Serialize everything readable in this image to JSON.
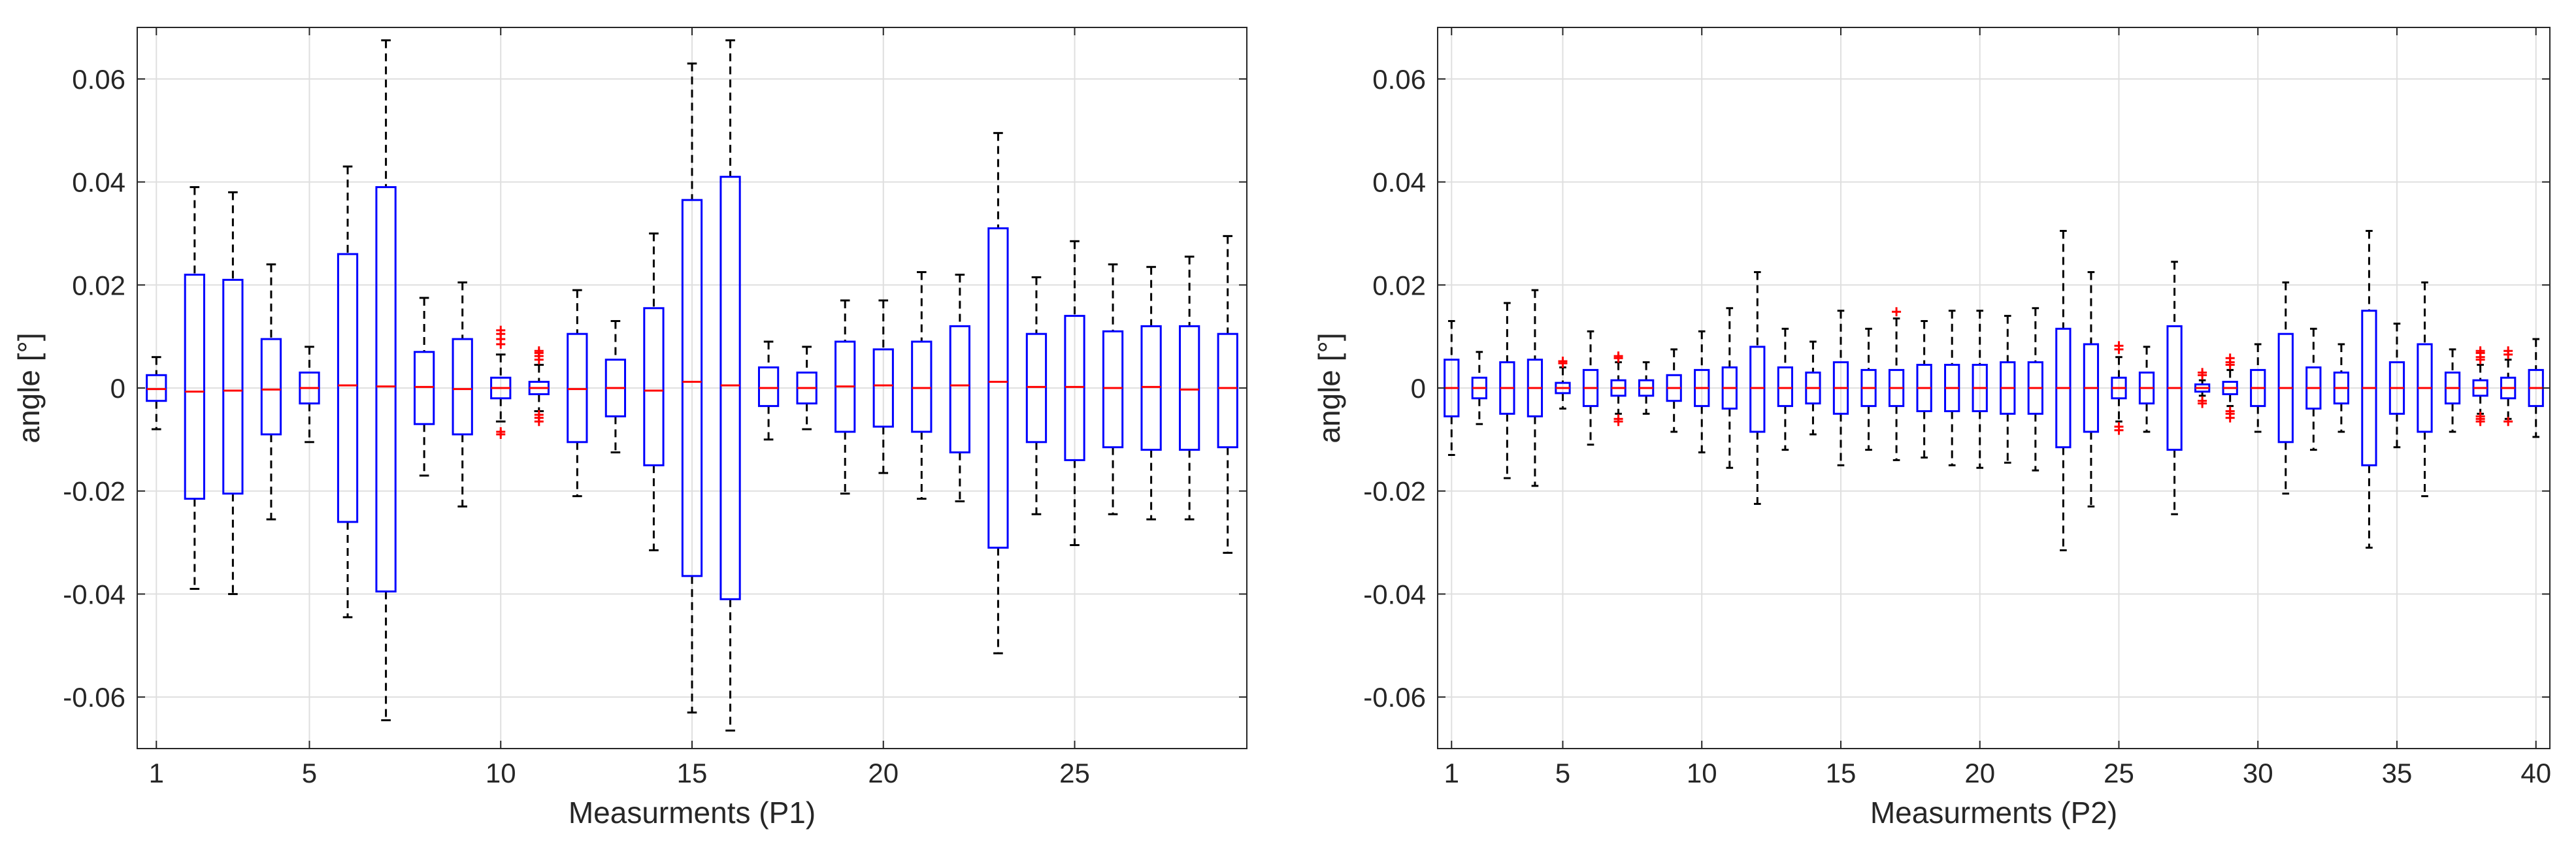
{
  "colors": {
    "box": "#0000ff",
    "median": "#ff0000",
    "outlier": "#ff0000",
    "whisker": "#000000",
    "grid": "#dfdfdf",
    "axis": "#262626"
  },
  "chart_data": [
    {
      "type": "boxplot",
      "xlabel": "Measurments (P1)",
      "ylabel": "angle [°]",
      "ylim": [
        -0.07,
        0.07
      ],
      "yticks": [
        -0.06,
        -0.04,
        -0.02,
        0,
        0.02,
        0.04,
        0.06
      ],
      "ytick_labels": [
        "-0.06",
        "-0.04",
        "-0.02",
        "0",
        "0.02",
        "0.04",
        "0.06"
      ],
      "xlim": [
        0.5,
        29.5
      ],
      "xticks": [
        1,
        5,
        10,
        15,
        20,
        25
      ],
      "xtick_labels": [
        "1",
        "5",
        "10",
        "15",
        "20",
        "25"
      ],
      "grid": true,
      "boxes": [
        {
          "x": 1,
          "lw": -0.008,
          "q1": -0.0025,
          "med": -0.0002,
          "q3": 0.0025,
          "uw": 0.006,
          "outliers": []
        },
        {
          "x": 2,
          "lw": -0.039,
          "q1": -0.0215,
          "med": -0.0007,
          "q3": 0.022,
          "uw": 0.039,
          "outliers": []
        },
        {
          "x": 3,
          "lw": -0.04,
          "q1": -0.0205,
          "med": -0.0005,
          "q3": 0.021,
          "uw": 0.038,
          "outliers": []
        },
        {
          "x": 4,
          "lw": -0.0255,
          "q1": -0.009,
          "med": -0.0003,
          "q3": 0.0095,
          "uw": 0.024,
          "outliers": []
        },
        {
          "x": 5,
          "lw": -0.0105,
          "q1": -0.003,
          "med": 0,
          "q3": 0.003,
          "uw": 0.008,
          "outliers": []
        },
        {
          "x": 6,
          "lw": -0.0445,
          "q1": -0.026,
          "med": 0.0005,
          "q3": 0.026,
          "uw": 0.043,
          "outliers": []
        },
        {
          "x": 7,
          "lw": -0.0645,
          "q1": -0.0395,
          "med": 0.0003,
          "q3": 0.039,
          "uw": 0.0675,
          "outliers": []
        },
        {
          "x": 8,
          "lw": -0.017,
          "q1": -0.007,
          "med": 0.0002,
          "q3": 0.007,
          "uw": 0.0175,
          "outliers": []
        },
        {
          "x": 9,
          "lw": -0.023,
          "q1": -0.009,
          "med": -0.0002,
          "q3": 0.0095,
          "uw": 0.0205,
          "outliers": []
        },
        {
          "x": 10,
          "lw": -0.0065,
          "q1": -0.002,
          "med": 0,
          "q3": 0.002,
          "uw": 0.0065,
          "outliers": [
            0.0085,
            0.0095,
            0.0105,
            0.0112,
            -0.0085,
            -0.009
          ]
        },
        {
          "x": 11,
          "lw": -0.0045,
          "q1": -0.0012,
          "med": 0,
          "q3": 0.0012,
          "uw": 0.0045,
          "outliers": [
            0.0055,
            0.0062,
            0.0068,
            0.0072,
            -0.0052,
            -0.0058,
            -0.0065
          ]
        },
        {
          "x": 12,
          "lw": -0.021,
          "q1": -0.0105,
          "med": -0.0002,
          "q3": 0.0105,
          "uw": 0.019,
          "outliers": []
        },
        {
          "x": 13,
          "lw": -0.0125,
          "q1": -0.0055,
          "med": 0,
          "q3": 0.0055,
          "uw": 0.013,
          "outliers": []
        },
        {
          "x": 14,
          "lw": -0.0315,
          "q1": -0.015,
          "med": -0.0005,
          "q3": 0.0155,
          "uw": 0.03,
          "outliers": []
        },
        {
          "x": 15,
          "lw": -0.063,
          "q1": -0.0365,
          "med": 0.0012,
          "q3": 0.0365,
          "uw": 0.063,
          "outliers": []
        },
        {
          "x": 16,
          "lw": -0.0665,
          "q1": -0.041,
          "med": 0.0005,
          "q3": 0.041,
          "uw": 0.0675,
          "outliers": []
        },
        {
          "x": 17,
          "lw": -0.01,
          "q1": -0.0035,
          "med": 0,
          "q3": 0.004,
          "uw": 0.009,
          "outliers": []
        },
        {
          "x": 18,
          "lw": -0.008,
          "q1": -0.003,
          "med": 0,
          "q3": 0.003,
          "uw": 0.008,
          "outliers": []
        },
        {
          "x": 19,
          "lw": -0.0205,
          "q1": -0.0085,
          "med": 0.0003,
          "q3": 0.009,
          "uw": 0.017,
          "outliers": []
        },
        {
          "x": 20,
          "lw": -0.0165,
          "q1": -0.0075,
          "med": 0.0005,
          "q3": 0.0075,
          "uw": 0.017,
          "outliers": []
        },
        {
          "x": 21,
          "lw": -0.0215,
          "q1": -0.0085,
          "med": 0,
          "q3": 0.009,
          "uw": 0.0225,
          "outliers": []
        },
        {
          "x": 22,
          "lw": -0.022,
          "q1": -0.0125,
          "med": 0.0005,
          "q3": 0.012,
          "uw": 0.022,
          "outliers": []
        },
        {
          "x": 23,
          "lw": -0.0515,
          "q1": -0.031,
          "med": 0.0012,
          "q3": 0.031,
          "uw": 0.0495,
          "outliers": []
        },
        {
          "x": 24,
          "lw": -0.0245,
          "q1": -0.0105,
          "med": 0.0002,
          "q3": 0.0105,
          "uw": 0.0215,
          "outliers": []
        },
        {
          "x": 25,
          "lw": -0.0305,
          "q1": -0.014,
          "med": 0.0002,
          "q3": 0.014,
          "uw": 0.0285,
          "outliers": []
        },
        {
          "x": 26,
          "lw": -0.0245,
          "q1": -0.0115,
          "med": 0,
          "q3": 0.011,
          "uw": 0.024,
          "outliers": []
        },
        {
          "x": 27,
          "lw": -0.0255,
          "q1": -0.012,
          "med": 0.0002,
          "q3": 0.012,
          "uw": 0.0235,
          "outliers": []
        },
        {
          "x": 28,
          "lw": -0.0255,
          "q1": -0.012,
          "med": -0.0003,
          "q3": 0.012,
          "uw": 0.0255,
          "outliers": []
        },
        {
          "x": 29,
          "lw": -0.032,
          "q1": -0.0115,
          "med": 0,
          "q3": 0.0105,
          "uw": 0.0295,
          "outliers": []
        }
      ]
    },
    {
      "type": "boxplot",
      "xlabel": "Measurments (P2)",
      "ylabel": "angle [°]",
      "ylim": [
        -0.07,
        0.07
      ],
      "yticks": [
        -0.06,
        -0.04,
        -0.02,
        0,
        0.02,
        0.04,
        0.06
      ],
      "ytick_labels": [
        "-0.06",
        "-0.04",
        "-0.02",
        "0",
        "0.02",
        "0.04",
        "0.06"
      ],
      "xlim": [
        0.5,
        40.5
      ],
      "xticks": [
        1,
        5,
        10,
        15,
        20,
        25,
        30,
        35,
        40
      ],
      "xtick_labels": [
        "1",
        "5",
        "10",
        "15",
        "20",
        "25",
        "30",
        "35",
        "40"
      ],
      "grid": true,
      "boxes": [
        {
          "x": 1,
          "lw": -0.013,
          "q1": -0.0055,
          "med": 0,
          "q3": 0.0055,
          "uw": 0.013,
          "outliers": []
        },
        {
          "x": 2,
          "lw": -0.007,
          "q1": -0.002,
          "med": 0,
          "q3": 0.002,
          "uw": 0.007,
          "outliers": []
        },
        {
          "x": 3,
          "lw": -0.0175,
          "q1": -0.005,
          "med": 0,
          "q3": 0.005,
          "uw": 0.0165,
          "outliers": []
        },
        {
          "x": 4,
          "lw": -0.019,
          "q1": -0.0055,
          "med": 0,
          "q3": 0.0055,
          "uw": 0.019,
          "outliers": []
        },
        {
          "x": 5,
          "lw": -0.004,
          "q1": -0.001,
          "med": 0,
          "q3": 0.001,
          "uw": 0.004,
          "outliers": [
            0.0048,
            0.0052
          ]
        },
        {
          "x": 6,
          "lw": -0.011,
          "q1": -0.0035,
          "med": 0,
          "q3": 0.0035,
          "uw": 0.011,
          "outliers": []
        },
        {
          "x": 7,
          "lw": -0.005,
          "q1": -0.0015,
          "med": 0,
          "q3": 0.0015,
          "uw": 0.005,
          "outliers": [
            0.0058,
            0.0062,
            -0.006,
            -0.0065
          ]
        },
        {
          "x": 8,
          "lw": -0.005,
          "q1": -0.0015,
          "med": 0,
          "q3": 0.0015,
          "uw": 0.005,
          "outliers": []
        },
        {
          "x": 9,
          "lw": -0.0085,
          "q1": -0.0025,
          "med": 0,
          "q3": 0.0025,
          "uw": 0.0075,
          "outliers": []
        },
        {
          "x": 10,
          "lw": -0.0125,
          "q1": -0.0035,
          "med": 0,
          "q3": 0.0035,
          "uw": 0.011,
          "outliers": []
        },
        {
          "x": 11,
          "lw": -0.0155,
          "q1": -0.004,
          "med": 0,
          "q3": 0.004,
          "uw": 0.0155,
          "outliers": []
        },
        {
          "x": 12,
          "lw": -0.0225,
          "q1": -0.0085,
          "med": 0,
          "q3": 0.008,
          "uw": 0.0225,
          "outliers": []
        },
        {
          "x": 13,
          "lw": -0.012,
          "q1": -0.0035,
          "med": 0,
          "q3": 0.004,
          "uw": 0.0115,
          "outliers": []
        },
        {
          "x": 14,
          "lw": -0.009,
          "q1": -0.003,
          "med": 0,
          "q3": 0.003,
          "uw": 0.009,
          "outliers": []
        },
        {
          "x": 15,
          "lw": -0.015,
          "q1": -0.005,
          "med": 0,
          "q3": 0.005,
          "uw": 0.015,
          "outliers": []
        },
        {
          "x": 16,
          "lw": -0.012,
          "q1": -0.0035,
          "med": 0,
          "q3": 0.0035,
          "uw": 0.0115,
          "outliers": []
        },
        {
          "x": 17,
          "lw": -0.014,
          "q1": -0.0035,
          "med": 0,
          "q3": 0.0035,
          "uw": 0.0135,
          "outliers": [
            0.0148
          ]
        },
        {
          "x": 18,
          "lw": -0.0135,
          "q1": -0.0045,
          "med": 0,
          "q3": 0.0045,
          "uw": 0.013,
          "outliers": []
        },
        {
          "x": 19,
          "lw": -0.015,
          "q1": -0.0045,
          "med": 0,
          "q3": 0.0045,
          "uw": 0.015,
          "outliers": []
        },
        {
          "x": 20,
          "lw": -0.0155,
          "q1": -0.0045,
          "med": 0,
          "q3": 0.0045,
          "uw": 0.015,
          "outliers": []
        },
        {
          "x": 21,
          "lw": -0.0145,
          "q1": -0.005,
          "med": 0,
          "q3": 0.005,
          "uw": 0.014,
          "outliers": []
        },
        {
          "x": 22,
          "lw": -0.016,
          "q1": -0.005,
          "med": 0,
          "q3": 0.005,
          "uw": 0.0155,
          "outliers": []
        },
        {
          "x": 23,
          "lw": -0.0315,
          "q1": -0.0115,
          "med": 0,
          "q3": 0.0115,
          "uw": 0.0305,
          "outliers": []
        },
        {
          "x": 24,
          "lw": -0.023,
          "q1": -0.0085,
          "med": 0,
          "q3": 0.0085,
          "uw": 0.0225,
          "outliers": []
        },
        {
          "x": 25,
          "lw": -0.0065,
          "q1": -0.002,
          "med": 0,
          "q3": 0.002,
          "uw": 0.006,
          "outliers": [
            0.0075,
            0.0082,
            -0.0075,
            -0.0082
          ]
        },
        {
          "x": 26,
          "lw": -0.0085,
          "q1": -0.003,
          "med": 0,
          "q3": 0.003,
          "uw": 0.008,
          "outliers": []
        },
        {
          "x": 27,
          "lw": -0.0245,
          "q1": -0.012,
          "med": 0,
          "q3": 0.012,
          "uw": 0.0245,
          "outliers": []
        },
        {
          "x": 28,
          "lw": -0.0015,
          "q1": -0.0007,
          "med": 0,
          "q3": 0.0007,
          "uw": 0.0015,
          "outliers": [
            0.0025,
            0.003,
            -0.0025,
            -0.003
          ]
        },
        {
          "x": 29,
          "lw": -0.0035,
          "q1": -0.0012,
          "med": 0,
          "q3": 0.0012,
          "uw": 0.0035,
          "outliers": [
            0.0045,
            0.005,
            0.0058,
            -0.0045,
            -0.005,
            -0.0058
          ]
        },
        {
          "x": 30,
          "lw": -0.0085,
          "q1": -0.0035,
          "med": 0,
          "q3": 0.0035,
          "uw": 0.0085,
          "outliers": []
        },
        {
          "x": 31,
          "lw": -0.0205,
          "q1": -0.0105,
          "med": 0,
          "q3": 0.0105,
          "uw": 0.0205,
          "outliers": []
        },
        {
          "x": 32,
          "lw": -0.012,
          "q1": -0.004,
          "med": 0,
          "q3": 0.004,
          "uw": 0.0115,
          "outliers": []
        },
        {
          "x": 33,
          "lw": -0.0085,
          "q1": -0.003,
          "med": 0,
          "q3": 0.003,
          "uw": 0.0085,
          "outliers": []
        },
        {
          "x": 34,
          "lw": -0.031,
          "q1": -0.015,
          "med": 0,
          "q3": 0.015,
          "uw": 0.0305,
          "outliers": []
        },
        {
          "x": 35,
          "lw": -0.0115,
          "q1": -0.005,
          "med": 0,
          "q3": 0.005,
          "uw": 0.0125,
          "outliers": []
        },
        {
          "x": 36,
          "lw": -0.021,
          "q1": -0.0085,
          "med": 0,
          "q3": 0.0085,
          "uw": 0.0205,
          "outliers": []
        },
        {
          "x": 37,
          "lw": -0.0085,
          "q1": -0.003,
          "med": 0,
          "q3": 0.003,
          "uw": 0.0075,
          "outliers": []
        },
        {
          "x": 38,
          "lw": -0.005,
          "q1": -0.0015,
          "med": 0,
          "q3": 0.0015,
          "uw": 0.0045,
          "outliers": [
            0.0055,
            0.006,
            0.0068,
            0.0072,
            -0.0055,
            -0.006,
            -0.0065
          ]
        },
        {
          "x": 39,
          "lw": -0.006,
          "q1": -0.002,
          "med": 0,
          "q3": 0.002,
          "uw": 0.0055,
          "outliers": [
            0.0065,
            0.0072,
            -0.0065
          ]
        },
        {
          "x": 40,
          "lw": -0.0095,
          "q1": -0.0035,
          "med": 0,
          "q3": 0.0035,
          "uw": 0.0095,
          "outliers": []
        }
      ]
    }
  ]
}
